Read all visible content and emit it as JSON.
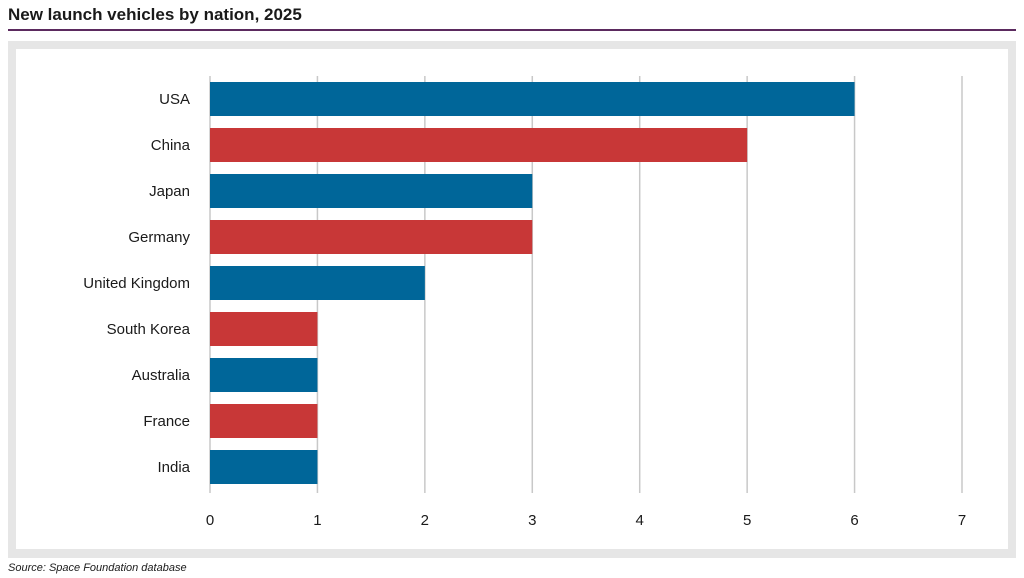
{
  "title": "New launch vehicles by nation, 2025",
  "source": "Source: Space Foundation database",
  "colors": {
    "blue": "#006699",
    "red": "#c83737",
    "grid": "#c8c8c8",
    "rule": "#5b2a5e",
    "frame": "#e6e6e6"
  },
  "chart_data": {
    "type": "bar",
    "orientation": "horizontal",
    "categories": [
      "USA",
      "China",
      "Japan",
      "Germany",
      "United Kingdom",
      "South Korea",
      "Australia",
      "France",
      "India"
    ],
    "values": [
      6,
      5,
      3,
      3,
      2,
      1,
      1,
      1,
      1
    ],
    "bar_colors": [
      "blue",
      "red",
      "blue",
      "red",
      "blue",
      "red",
      "blue",
      "red",
      "blue"
    ],
    "xlim": [
      0,
      7
    ],
    "xticks": [
      0,
      1,
      2,
      3,
      4,
      5,
      6,
      7
    ],
    "grid": "vertical"
  }
}
